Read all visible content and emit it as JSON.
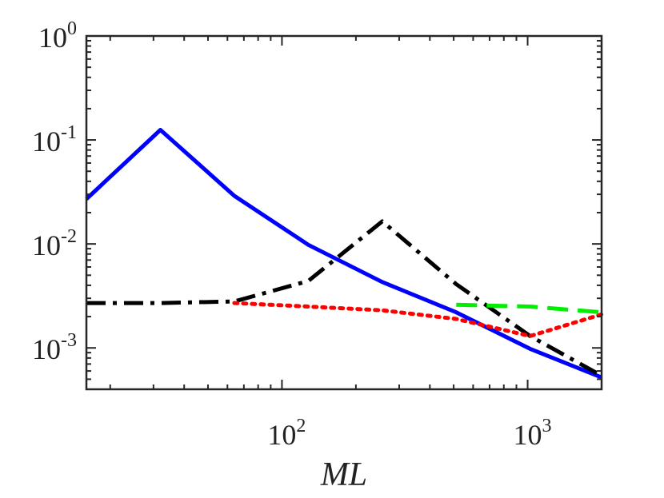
{
  "chart_data": {
    "type": "line",
    "title": "",
    "xlabel": "ML",
    "ylabel": "",
    "xscale": "log",
    "yscale": "log",
    "xlim": [
      16,
      2000
    ],
    "ylim": [
      0.0004,
      1
    ],
    "x_ticks": [
      {
        "value": 100,
        "base": "10",
        "exp": "2"
      },
      {
        "value": 1000,
        "base": "10",
        "exp": "3"
      }
    ],
    "y_ticks": [
      {
        "value": 1,
        "base": "10",
        "exp": "0"
      },
      {
        "value": 0.1,
        "base": "10",
        "exp": "-1"
      },
      {
        "value": 0.01,
        "base": "10",
        "exp": "-2"
      },
      {
        "value": 0.001,
        "base": "10",
        "exp": "-3"
      }
    ],
    "grid": false,
    "legend": "none",
    "series": [
      {
        "name": "blue-solid",
        "color": "#0000ff",
        "style": "solid",
        "x": [
          16,
          32,
          64,
          128,
          256,
          512,
          1024,
          2000
        ],
        "y": [
          0.027,
          0.125,
          0.029,
          0.0098,
          0.0043,
          0.0022,
          0.00098,
          0.00052
        ]
      },
      {
        "name": "black-dashdot",
        "color": "#000000",
        "style": "dashdot",
        "x": [
          16,
          32,
          64,
          128,
          256,
          512,
          1024,
          2000
        ],
        "y": [
          0.0027,
          0.0027,
          0.0028,
          0.0044,
          0.0165,
          0.0041,
          0.0013,
          0.00054
        ]
      },
      {
        "name": "red-dotted",
        "color": "#ff0000",
        "style": "dotted",
        "x": [
          64,
          128,
          256,
          512,
          1024,
          2000
        ],
        "y": [
          0.0027,
          0.0025,
          0.0023,
          0.0019,
          0.0013,
          0.0021
        ]
      },
      {
        "name": "green-dashed",
        "color": "#00ee00",
        "style": "dashed",
        "x": [
          512,
          1024,
          2000
        ],
        "y": [
          0.0026,
          0.0025,
          0.0022
        ]
      }
    ]
  }
}
